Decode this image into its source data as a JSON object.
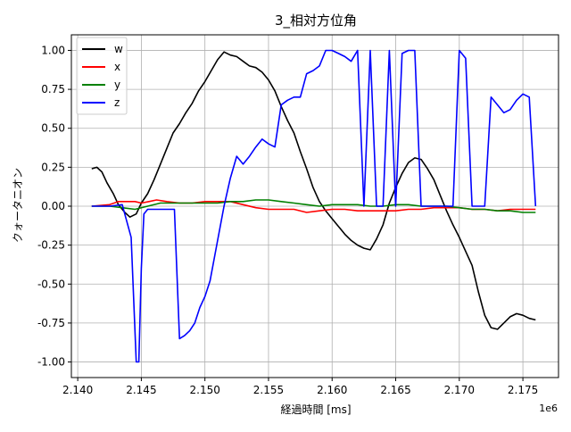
{
  "chart_data": {
    "type": "line",
    "title": "3_相対方位角",
    "xlabel": "経過時間 [ms]",
    "ylabel": "クォータニオン",
    "x_offset_label": "1e6",
    "xlim": [
      2.1395,
      2.1778
    ],
    "ylim": [
      -1.1,
      1.1
    ],
    "x_ticks": [
      2.14,
      2.145,
      2.15,
      2.155,
      2.16,
      2.165,
      2.17,
      2.175
    ],
    "x_tick_labels": [
      "2.140",
      "2.145",
      "2.150",
      "2.155",
      "2.160",
      "2.165",
      "2.170",
      "2.175"
    ],
    "y_ticks": [
      1.0,
      0.75,
      0.5,
      0.25,
      0.0,
      -0.25,
      -0.5,
      -0.75,
      -1.0
    ],
    "y_tick_labels": [
      "1.00",
      "0.75",
      "0.50",
      "0.25",
      "0.00",
      "-0.25",
      "-0.50",
      "-0.75",
      "-1.00"
    ],
    "grid": true,
    "legend_position": "upper-left",
    "series": [
      {
        "name": "w",
        "color": "#000000",
        "x": [
          2.1411,
          2.1415,
          2.1419,
          2.1423,
          2.1428,
          2.1432,
          2.1437,
          2.1441,
          2.1446,
          2.145,
          2.1455,
          2.146,
          2.1465,
          2.147,
          2.1475,
          2.148,
          2.1485,
          2.149,
          2.1495,
          2.15,
          2.1505,
          2.151,
          2.1515,
          2.152,
          2.1525,
          2.153,
          2.1535,
          2.154,
          2.1545,
          2.155,
          2.1555,
          2.156,
          2.1565,
          2.157,
          2.1575,
          2.158,
          2.1585,
          2.159,
          2.1595,
          2.16,
          2.1605,
          2.161,
          2.1615,
          2.162,
          2.1625,
          2.163,
          2.1635,
          2.164,
          2.1645,
          2.165,
          2.1655,
          2.166,
          2.1665,
          2.167,
          2.1675,
          2.168,
          2.1685,
          2.169,
          2.1695,
          2.17,
          2.1705,
          2.171,
          2.1715,
          2.172,
          2.1725,
          2.173,
          2.1735,
          2.174,
          2.1745,
          2.175,
          2.1755,
          2.176
        ],
        "y": [
          0.24,
          0.25,
          0.22,
          0.15,
          0.08,
          0.01,
          -0.04,
          -0.07,
          -0.05,
          0.02,
          0.08,
          0.17,
          0.27,
          0.37,
          0.47,
          0.53,
          0.6,
          0.66,
          0.74,
          0.8,
          0.87,
          0.94,
          0.99,
          0.97,
          0.96,
          0.93,
          0.9,
          0.89,
          0.86,
          0.81,
          0.74,
          0.64,
          0.55,
          0.47,
          0.35,
          0.24,
          0.12,
          0.03,
          -0.03,
          -0.08,
          -0.13,
          -0.18,
          -0.22,
          -0.25,
          -0.27,
          -0.28,
          -0.21,
          -0.12,
          0.02,
          0.12,
          0.21,
          0.28,
          0.31,
          0.3,
          0.24,
          0.17,
          0.07,
          -0.03,
          -0.12,
          -0.2,
          -0.29,
          -0.38,
          -0.55,
          -0.7,
          -0.78,
          -0.79,
          -0.75,
          -0.71,
          -0.69,
          -0.7,
          -0.72,
          -0.73
        ]
      },
      {
        "name": "x",
        "color": "#ff0000",
        "x": [
          2.1411,
          2.1425,
          2.1432,
          2.1438,
          2.1445,
          2.145,
          2.1456,
          2.1462,
          2.147,
          2.148,
          2.149,
          2.15,
          2.151,
          2.152,
          2.153,
          2.154,
          2.155,
          2.156,
          2.157,
          2.158,
          2.159,
          2.16,
          2.161,
          2.162,
          2.163,
          2.164,
          2.165,
          2.166,
          2.167,
          2.168,
          2.169,
          2.17,
          2.171,
          2.172,
          2.173,
          2.174,
          2.175,
          2.176
        ],
        "y": [
          0.0,
          0.01,
          0.03,
          0.03,
          0.03,
          0.02,
          0.03,
          0.04,
          0.03,
          0.02,
          0.02,
          0.03,
          0.03,
          0.03,
          0.01,
          -0.01,
          -0.02,
          -0.02,
          -0.02,
          -0.04,
          -0.03,
          -0.02,
          -0.02,
          -0.03,
          -0.03,
          -0.03,
          -0.03,
          -0.02,
          -0.02,
          -0.01,
          -0.01,
          -0.01,
          -0.02,
          -0.02,
          -0.03,
          -0.02,
          -0.02,
          -0.02
        ]
      },
      {
        "name": "y",
        "color": "#008000",
        "x": [
          2.1411,
          2.1425,
          2.1435,
          2.1445,
          2.1455,
          2.1465,
          2.148,
          2.149,
          2.15,
          2.151,
          2.152,
          2.153,
          2.154,
          2.155,
          2.156,
          2.157,
          2.158,
          2.159,
          2.16,
          2.161,
          2.162,
          2.163,
          2.164,
          2.165,
          2.166,
          2.167,
          2.168,
          2.169,
          2.17,
          2.171,
          2.172,
          2.173,
          2.174,
          2.175,
          2.176
        ],
        "y": [
          0.0,
          0.0,
          -0.01,
          -0.02,
          0.0,
          0.02,
          0.02,
          0.02,
          0.02,
          0.02,
          0.03,
          0.03,
          0.04,
          0.04,
          0.03,
          0.02,
          0.01,
          0.0,
          0.01,
          0.01,
          0.01,
          0.0,
          0.0,
          0.01,
          0.01,
          0.0,
          0.0,
          0.0,
          -0.01,
          -0.02,
          -0.02,
          -0.03,
          -0.03,
          -0.04,
          -0.04
        ]
      },
      {
        "name": "z",
        "color": "#0000ff",
        "x": [
          2.1411,
          2.1425,
          2.1435,
          2.1442,
          2.1446,
          2.1448,
          2.145,
          2.1452,
          2.1455,
          2.1458,
          2.146,
          2.1464,
          2.1468,
          2.1472,
          2.1476,
          2.148,
          2.1484,
          2.1488,
          2.1492,
          2.1496,
          2.15,
          2.1504,
          2.151,
          2.1515,
          2.152,
          2.1525,
          2.153,
          2.1535,
          2.154,
          2.1545,
          2.155,
          2.1555,
          2.156,
          2.1565,
          2.157,
          2.1575,
          2.158,
          2.1585,
          2.159,
          2.1595,
          2.16,
          2.1605,
          2.161,
          2.1615,
          2.162,
          2.1625,
          2.163,
          2.1635,
          2.164,
          2.1645,
          2.165,
          2.1655,
          2.166,
          2.1665,
          2.167,
          2.1675,
          2.168,
          2.1685,
          2.169,
          2.1695,
          2.17,
          2.1705,
          2.171,
          2.1715,
          2.172,
          2.1725,
          2.173,
          2.1735,
          2.174,
          2.1745,
          2.175,
          2.1755,
          2.176
        ],
        "y": [
          0.0,
          0.0,
          0.01,
          -0.2,
          -1.0,
          -1.0,
          -0.4,
          -0.05,
          -0.02,
          -0.02,
          -0.02,
          -0.02,
          -0.02,
          -0.02,
          -0.02,
          -0.85,
          -0.83,
          -0.8,
          -0.75,
          -0.65,
          -0.58,
          -0.48,
          -0.22,
          0.0,
          0.18,
          0.32,
          0.27,
          0.32,
          0.38,
          0.43,
          0.4,
          0.38,
          0.65,
          0.68,
          0.7,
          0.7,
          0.85,
          0.87,
          0.9,
          1.0,
          1.0,
          0.98,
          0.96,
          0.93,
          1.0,
          0.0,
          1.0,
          0.0,
          0.0,
          1.0,
          0.0,
          0.98,
          1.0,
          1.0,
          0.0,
          0.0,
          0.0,
          0.0,
          0.0,
          0.0,
          1.0,
          0.95,
          0.0,
          0.0,
          0.0,
          0.7,
          0.65,
          0.6,
          0.62,
          0.68,
          0.72,
          0.7,
          0.0
        ]
      }
    ]
  }
}
